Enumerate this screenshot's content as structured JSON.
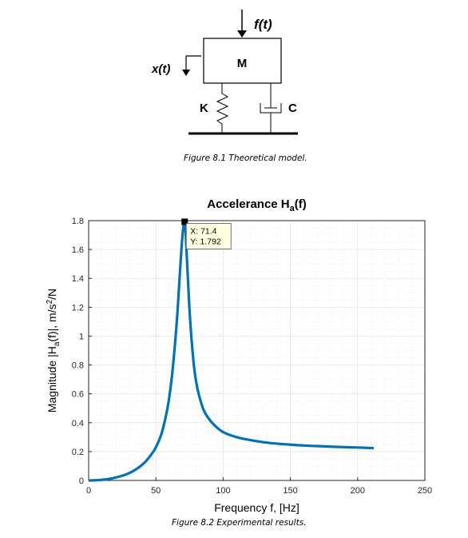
{
  "figure1": {
    "force_label": "f(t)",
    "mass_label": "M",
    "disp_label": "x(t)",
    "spring_label": "K",
    "damper_label": "C",
    "caption": "Figure 8.1 Theoretical model."
  },
  "figure2": {
    "caption": "Figure 8.2 Experimental results.",
    "datatip": {
      "x_text": "X: 71.4",
      "y_text": "Y: 1.792"
    }
  },
  "colors": {
    "line": "#0072BD",
    "grid": "#dfdfdf",
    "datatip_bg": "#ffffe1"
  },
  "chart_data": {
    "type": "line",
    "title": "Accelerance H_a(f)",
    "xlabel": "Frequency f, [Hz]",
    "ylabel": "Magnitude |H_a(f)|, m/s^2/N",
    "xlim": [
      0,
      250
    ],
    "ylim": [
      0,
      1.8
    ],
    "xticks": [
      0,
      50,
      100,
      150,
      200,
      250
    ],
    "yticks": [
      0,
      0.2,
      0.4,
      0.6,
      0.8,
      1,
      1.2,
      1.4,
      1.6,
      1.8
    ],
    "xtick_labels": [
      "0",
      "50",
      "100",
      "150",
      "200",
      "250"
    ],
    "ytick_labels": [
      "0",
      "0.2",
      "0.4",
      "0.6",
      "0.8",
      "1",
      "1.2",
      "1.4",
      "1.6",
      "1.8"
    ],
    "grid": true,
    "series": [
      {
        "x": [
          0,
          10,
          20,
          30,
          40,
          45,
          50,
          55,
          60,
          63,
          66,
          68,
          70,
          71.4,
          73,
          75,
          78,
          80,
          85,
          90,
          95,
          100,
          110,
          120,
          130,
          140,
          150,
          160,
          170,
          180,
          190,
          200,
          212
        ],
        "y": [
          0,
          0.004,
          0.02,
          0.05,
          0.11,
          0.16,
          0.23,
          0.35,
          0.58,
          0.82,
          1.16,
          1.46,
          1.72,
          1.792,
          1.55,
          1.18,
          0.82,
          0.68,
          0.5,
          0.42,
          0.37,
          0.335,
          0.3,
          0.28,
          0.265,
          0.255,
          0.248,
          0.242,
          0.238,
          0.234,
          0.231,
          0.228,
          0.224
        ]
      }
    ],
    "datatip": {
      "x": 71.4,
      "y": 1.792
    }
  }
}
